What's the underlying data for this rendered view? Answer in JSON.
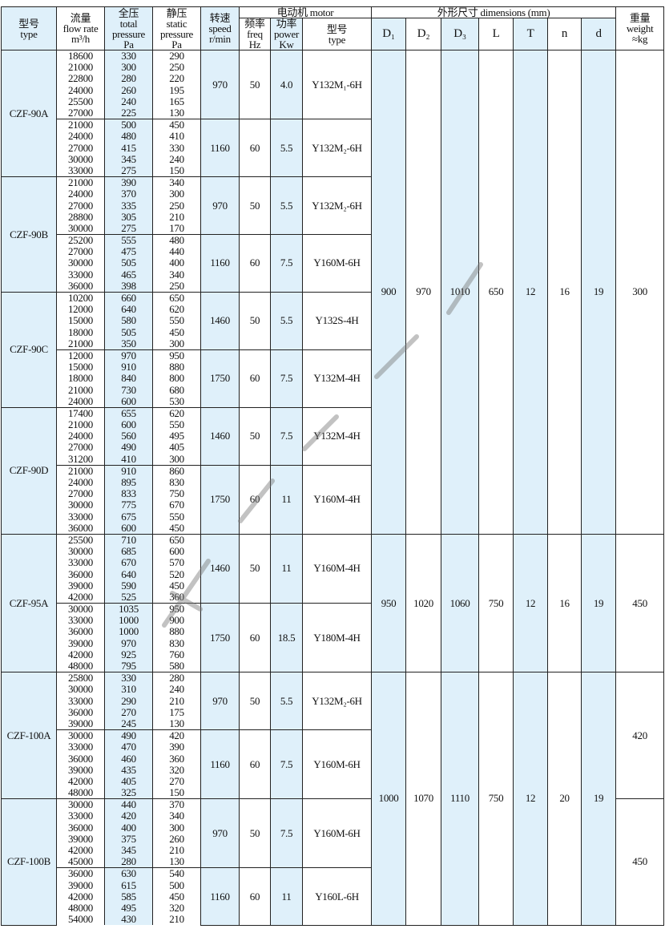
{
  "header": {
    "type": [
      "型号",
      "type"
    ],
    "flow": [
      "流量",
      "flow rate",
      "m³/h"
    ],
    "total": [
      "全压",
      "total",
      "pressure",
      "Pa"
    ],
    "static": [
      "静压",
      "static",
      "pressure",
      "Pa"
    ],
    "speed": [
      "转速",
      "speed",
      "r/min"
    ],
    "motor": "电动机  motor",
    "freq": [
      "频率",
      "freq",
      "Hz"
    ],
    "power": [
      "功率",
      "power",
      "Kw"
    ],
    "motor_type": [
      "型号",
      "type"
    ],
    "dimensions": "外形尺寸    dimensions (mm)",
    "dims": [
      "D₁",
      "D₂",
      "D₃",
      "L",
      "T",
      "n",
      "d"
    ],
    "weight": [
      "重量",
      "weight",
      "≈kg"
    ]
  },
  "models": [
    {
      "type": "CZF-90A",
      "blocks": [
        {
          "speed": "970",
          "freq": "50",
          "power": "4.0",
          "motor": "Y132M₁-6H",
          "rows": [
            [
              "18600",
              "330",
              "290"
            ],
            [
              "21000",
              "300",
              "250"
            ],
            [
              "22800",
              "280",
              "220"
            ],
            [
              "24000",
              "260",
              "195"
            ],
            [
              "25500",
              "240",
              "165"
            ],
            [
              "27000",
              "225",
              "130"
            ]
          ]
        },
        {
          "speed": "1160",
          "freq": "60",
          "power": "5.5",
          "motor": "Y132M₂-6H",
          "rows": [
            [
              "21000",
              "500",
              "450"
            ],
            [
              "24000",
              "480",
              "410"
            ],
            [
              "27000",
              "415",
              "330"
            ],
            [
              "30000",
              "345",
              "240"
            ],
            [
              "33000",
              "275",
              "150"
            ]
          ]
        }
      ]
    },
    {
      "type": "CZF-90B",
      "blocks": [
        {
          "speed": "970",
          "freq": "50",
          "power": "5.5",
          "motor": "Y132M₂-6H",
          "rows": [
            [
              "21000",
              "390",
              "340"
            ],
            [
              "24000",
              "370",
              "300"
            ],
            [
              "27000",
              "335",
              "250"
            ],
            [
              "28800",
              "305",
              "210"
            ],
            [
              "30000",
              "275",
              "170"
            ]
          ]
        },
        {
          "speed": "1160",
          "freq": "60",
          "power": "7.5",
          "motor": "Y160M-6H",
          "rows": [
            [
              "25200",
              "555",
              "480"
            ],
            [
              "27000",
              "475",
              "440"
            ],
            [
              "30000",
              "505",
              "400"
            ],
            [
              "33000",
              "465",
              "340"
            ],
            [
              "36000",
              "398",
              "250"
            ]
          ]
        }
      ]
    },
    {
      "type": "CZF-90C",
      "blocks": [
        {
          "speed": "1460",
          "freq": "50",
          "power": "5.5",
          "motor": "Y132S-4H",
          "rows": [
            [
              "10200",
              "660",
              "650"
            ],
            [
              "12000",
              "640",
              "620"
            ],
            [
              "15000",
              "580",
              "550"
            ],
            [
              "18000",
              "505",
              "450"
            ],
            [
              "21000",
              "350",
              "300"
            ]
          ]
        },
        {
          "speed": "1750",
          "freq": "60",
          "power": "7.5",
          "motor": "Y132M-4H",
          "rows": [
            [
              "12000",
              "970",
              "950"
            ],
            [
              "15000",
              "910",
              "880"
            ],
            [
              "18000",
              "840",
              "800"
            ],
            [
              "21000",
              "730",
              "680"
            ],
            [
              "24000",
              "600",
              "530"
            ]
          ]
        }
      ]
    },
    {
      "type": "CZF-90D",
      "blocks": [
        {
          "speed": "1460",
          "freq": "50",
          "power": "7.5",
          "motor": "Y132M-4H",
          "rows": [
            [
              "17400",
              "655",
              "620"
            ],
            [
              "21000",
              "600",
              "550"
            ],
            [
              "24000",
              "560",
              "495"
            ],
            [
              "27000",
              "490",
              "405"
            ],
            [
              "31200",
              "410",
              "300"
            ]
          ]
        },
        {
          "speed": "1750",
          "freq": "60",
          "power": "11",
          "motor": "Y160M-4H",
          "rows": [
            [
              "21000",
              "910",
              "860"
            ],
            [
              "24000",
              "895",
              "830"
            ],
            [
              "27000",
              "833",
              "750"
            ],
            [
              "30000",
              "775",
              "670"
            ],
            [
              "33000",
              "675",
              "550"
            ],
            [
              "36000",
              "600",
              "450"
            ]
          ]
        }
      ]
    },
    {
      "type": "CZF-95A",
      "blocks": [
        {
          "speed": "1460",
          "freq": "50",
          "power": "11",
          "motor": "Y160M-4H",
          "rows": [
            [
              "25500",
              "710",
              "650"
            ],
            [
              "30000",
              "685",
              "600"
            ],
            [
              "33000",
              "670",
              "570"
            ],
            [
              "36000",
              "640",
              "520"
            ],
            [
              "39000",
              "590",
              "450"
            ],
            [
              "42000",
              "525",
              "360"
            ]
          ]
        },
        {
          "speed": "1750",
          "freq": "60",
          "power": "18.5",
          "motor": "Y180M-4H",
          "rows": [
            [
              "30000",
              "1035",
              "950"
            ],
            [
              "33000",
              "1000",
              "900"
            ],
            [
              "36000",
              "1000",
              "880"
            ],
            [
              "39000",
              "970",
              "830"
            ],
            [
              "42000",
              "925",
              "760"
            ],
            [
              "48000",
              "795",
              "580"
            ]
          ]
        }
      ]
    },
    {
      "type": "CZF-100A",
      "blocks": [
        {
          "speed": "970",
          "freq": "50",
          "power": "5.5",
          "motor": "Y132M₂-6H",
          "rows": [
            [
              "25800",
              "330",
              "280"
            ],
            [
              "30000",
              "310",
              "240"
            ],
            [
              "33000",
              "290",
              "210"
            ],
            [
              "36000",
              "270",
              "175"
            ],
            [
              "39000",
              "245",
              "130"
            ]
          ]
        },
        {
          "speed": "1160",
          "freq": "60",
          "power": "7.5",
          "motor": "Y160M-6H",
          "rows": [
            [
              "30000",
              "490",
              "420"
            ],
            [
              "33000",
              "470",
              "390"
            ],
            [
              "36000",
              "460",
              "360"
            ],
            [
              "39000",
              "435",
              "320"
            ],
            [
              "42000",
              "405",
              "270"
            ],
            [
              "48000",
              "325",
              "150"
            ]
          ]
        }
      ]
    },
    {
      "type": "CZF-100B",
      "blocks": [
        {
          "speed": "970",
          "freq": "50",
          "power": "7.5",
          "motor": "Y160M-6H",
          "rows": [
            [
              "30000",
              "440",
              "370"
            ],
            [
              "33000",
              "420",
              "340"
            ],
            [
              "36000",
              "400",
              "300"
            ],
            [
              "39000",
              "375",
              "260"
            ],
            [
              "42000",
              "345",
              "210"
            ],
            [
              "45000",
              "280",
              "130"
            ]
          ]
        },
        {
          "speed": "1160",
          "freq": "60",
          "power": "11",
          "motor": "Y160L-6H",
          "rows": [
            [
              "36000",
              "630",
              "540"
            ],
            [
              "39000",
              "615",
              "500"
            ],
            [
              "42000",
              "585",
              "450"
            ],
            [
              "48000",
              "495",
              "320"
            ],
            [
              "54000",
              "430",
              "210"
            ]
          ]
        }
      ]
    }
  ],
  "dimension_groups": [
    {
      "models": 4,
      "values": [
        "900",
        "970",
        "1010",
        "650",
        "12",
        "16",
        "19"
      ],
      "weights": [
        {
          "models": 4,
          "value": "300"
        }
      ]
    },
    {
      "models": 1,
      "values": [
        "950",
        "1020",
        "1060",
        "750",
        "12",
        "16",
        "19"
      ],
      "weights": [
        {
          "models": 1,
          "value": "450"
        }
      ]
    },
    {
      "models": 2,
      "values": [
        "1000",
        "1070",
        "1110",
        "750",
        "12",
        "20",
        "19"
      ],
      "weights": [
        {
          "models": 1,
          "value": "420"
        },
        {
          "models": 1,
          "value": "450"
        }
      ]
    }
  ],
  "colors": {
    "shade": "#dff0fa",
    "border": "#222222",
    "watermark": "#787878"
  }
}
